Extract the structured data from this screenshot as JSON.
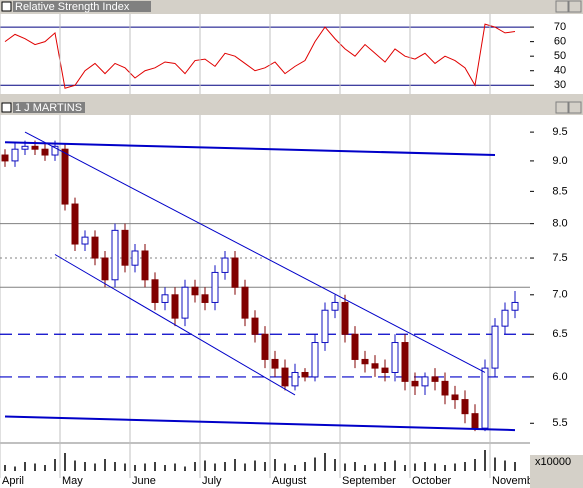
{
  "chart_data": [
    {
      "type": "line",
      "title": "Relative Strength Index",
      "color": "#e00000",
      "values": [
        60,
        65,
        62,
        58,
        60,
        66,
        28,
        30,
        40,
        45,
        38,
        45,
        42,
        35,
        40,
        42,
        46,
        45,
        38,
        47,
        48,
        43,
        52,
        50,
        45,
        40,
        42,
        46,
        38,
        43,
        47,
        60,
        70,
        62,
        55,
        50,
        58,
        52,
        46,
        55,
        50,
        48,
        52,
        45,
        50,
        47,
        42,
        30,
        72,
        70,
        66,
        67
      ],
      "ylim": [
        24,
        79
      ],
      "yticks": [
        30,
        40,
        50,
        60,
        70
      ],
      "levels": [
        70,
        30
      ]
    },
    {
      "type": "candlestick",
      "title": "1 J MARTINS",
      "log_scale": true,
      "up_color": "#1010c0",
      "down_color": "#800000",
      "open": [
        9.1,
        9.0,
        9.2,
        9.25,
        9.2,
        9.1,
        9.2,
        8.3,
        7.7,
        7.8,
        7.5,
        7.2,
        7.9,
        7.4,
        7.6,
        7.2,
        6.9,
        7.0,
        6.7,
        7.1,
        7.0,
        6.9,
        7.3,
        7.5,
        7.1,
        6.7,
        6.5,
        6.2,
        6.1,
        5.9,
        6.05,
        6.0,
        6.4,
        6.8,
        6.9,
        6.5,
        6.2,
        6.15,
        6.1,
        6.05,
        6.4,
        5.95,
        5.9,
        6.0,
        5.95,
        5.8,
        5.75,
        5.6,
        5.45,
        6.1,
        6.6,
        6.8
      ],
      "high": [
        9.2,
        9.3,
        9.35,
        9.35,
        9.3,
        9.35,
        9.3,
        8.4,
        7.9,
        7.9,
        7.6,
        8.0,
        8.0,
        7.7,
        7.7,
        7.3,
        7.1,
        7.1,
        7.2,
        7.2,
        7.1,
        7.4,
        7.6,
        7.6,
        7.2,
        6.8,
        6.6,
        6.3,
        6.2,
        6.15,
        6.1,
        6.5,
        6.9,
        7.0,
        7.0,
        6.6,
        6.3,
        6.25,
        6.2,
        6.5,
        6.5,
        6.05,
        6.05,
        6.1,
        6.05,
        5.9,
        5.85,
        5.7,
        6.2,
        6.7,
        6.9,
        7.05
      ],
      "low": [
        8.9,
        8.9,
        9.1,
        9.1,
        9.0,
        9.0,
        8.2,
        7.6,
        7.6,
        7.4,
        7.1,
        7.1,
        7.3,
        7.3,
        7.1,
        6.8,
        6.8,
        6.6,
        6.6,
        6.9,
        6.8,
        6.8,
        7.2,
        7.0,
        6.6,
        6.4,
        6.1,
        6.0,
        5.85,
        5.85,
        5.95,
        5.95,
        6.3,
        6.7,
        6.4,
        6.1,
        6.05,
        6.0,
        5.95,
        5.95,
        5.85,
        5.8,
        5.8,
        5.85,
        5.7,
        5.65,
        5.5,
        5.42,
        5.42,
        6.0,
        6.5,
        6.7
      ],
      "close": [
        9.0,
        9.2,
        9.25,
        9.2,
        9.1,
        9.25,
        8.3,
        7.7,
        7.8,
        7.5,
        7.2,
        7.9,
        7.4,
        7.6,
        7.2,
        6.9,
        7.0,
        6.7,
        7.1,
        7.0,
        6.9,
        7.3,
        7.5,
        7.1,
        6.7,
        6.5,
        6.2,
        6.1,
        5.9,
        6.05,
        6.0,
        6.4,
        6.8,
        6.9,
        6.5,
        6.2,
        6.15,
        6.1,
        6.05,
        6.4,
        5.95,
        5.9,
        6.0,
        5.95,
        5.8,
        5.75,
        5.6,
        5.45,
        6.1,
        6.6,
        6.8,
        6.9
      ],
      "volume": [
        4,
        3,
        6,
        5,
        4,
        8,
        12,
        7,
        6,
        5,
        8,
        6,
        5,
        4,
        5,
        6,
        4,
        5,
        3,
        6,
        7,
        5,
        6,
        8,
        5,
        7,
        6,
        8,
        5,
        4,
        6,
        9,
        12,
        8,
        5,
        6,
        4,
        5,
        6,
        7,
        4,
        5,
        6,
        5,
        4,
        5,
        6,
        8,
        14,
        9,
        7,
        6
      ],
      "volume_lim": [
        0,
        16
      ],
      "volume_label": "x10000",
      "ylim": [
        5.3,
        9.81
      ],
      "yticks": [
        9.5,
        {
          "value": 9.0,
          "label": "9.0"
        },
        8.5,
        {
          "value": 8.0,
          "label": "8.0"
        },
        7.5,
        {
          "value": 7.0,
          "label": "7.0"
        },
        6.5,
        {
          "value": 6.0,
          "label": "6.0"
        },
        5.5
      ],
      "xticks": [
        {
          "value": 0,
          "label": "April"
        },
        {
          "value": 6,
          "label": "May"
        },
        {
          "value": 13,
          "label": "June"
        },
        {
          "value": 20,
          "label": "July"
        },
        {
          "value": 27,
          "label": "August"
        },
        {
          "value": 34,
          "label": "September"
        },
        {
          "value": 41,
          "label": "October"
        },
        {
          "value": 49,
          "label": "Novemb"
        }
      ],
      "trendlines": [
        {
          "x": [
            0,
            49
          ],
          "y": [
            9.32,
            9.1
          ],
          "color": "#0000c8",
          "width": 2
        },
        {
          "x": [
            2,
            48
          ],
          "y": [
            9.5,
            6.05
          ],
          "color": "#0000c8",
          "width": 1
        },
        {
          "x": [
            5,
            29
          ],
          "y": [
            7.55,
            5.8
          ],
          "color": "#0000c8",
          "width": 1
        },
        {
          "x": [
            0,
            51
          ],
          "y": [
            5.57,
            5.43
          ],
          "color": "#0000c8",
          "width": 2
        }
      ],
      "dashed_levels": [
        6.5,
        6.0
      ],
      "gray_levels": [
        8.0,
        7.1
      ],
      "dotted_levels": [
        7.5
      ]
    }
  ]
}
